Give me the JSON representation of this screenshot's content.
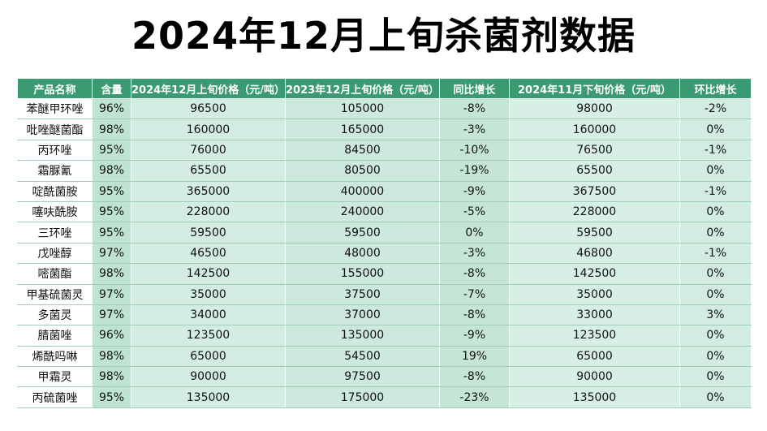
{
  "title": "2024年12月上旬杀菌剂数据",
  "table": {
    "headers": [
      "产品名称",
      "含量",
      "2024年12月上旬价格（元/吨）",
      "2023年12月上旬价格（元/吨）",
      "同比增长",
      "2024年11月下旬价格（元/吨）",
      "环比增长"
    ],
    "rows": [
      [
        "苯醚甲环唑",
        "96%",
        "96500",
        "105000",
        "-8%",
        "98000",
        "-2%"
      ],
      [
        "吡唑醚菌酯",
        "98%",
        "160000",
        "165000",
        "-3%",
        "160000",
        "0%"
      ],
      [
        "丙环唑",
        "95%",
        "76000",
        "84500",
        "-10%",
        "76500",
        "-1%"
      ],
      [
        "霜脲氰",
        "98%",
        "65500",
        "80500",
        "-19%",
        "65500",
        "0%"
      ],
      [
        "啶酰菌胺",
        "95%",
        "365000",
        "400000",
        "-9%",
        "367500",
        "-1%"
      ],
      [
        "噻呋酰胺",
        "95%",
        "228000",
        "240000",
        "-5%",
        "228000",
        "0%"
      ],
      [
        "三环唑",
        "95%",
        "59500",
        "59500",
        "0%",
        "59500",
        "0%"
      ],
      [
        "戊唑醇",
        "97%",
        "46500",
        "48000",
        "-3%",
        "46800",
        "-1%"
      ],
      [
        "嘧菌酯",
        "98%",
        "142500",
        "155000",
        "-8%",
        "142500",
        "0%"
      ],
      [
        "甲基硫菌灵",
        "97%",
        "35000",
        "37500",
        "-7%",
        "35000",
        "0%"
      ],
      [
        "多菌灵",
        "97%",
        "34000",
        "37000",
        "-8%",
        "33000",
        "3%"
      ],
      [
        "腈菌唑",
        "96%",
        "123500",
        "135000",
        "-9%",
        "123500",
        "0%"
      ],
      [
        "烯酰吗啉",
        "98%",
        "65000",
        "54500",
        "19%",
        "65000",
        "0%"
      ],
      [
        "甲霜灵",
        "98%",
        "90000",
        "97500",
        "-8%",
        "90000",
        "0%"
      ],
      [
        "丙硫菌唑",
        "95%",
        "135000",
        "175000",
        "-23%",
        "135000",
        "0%"
      ]
    ]
  }
}
